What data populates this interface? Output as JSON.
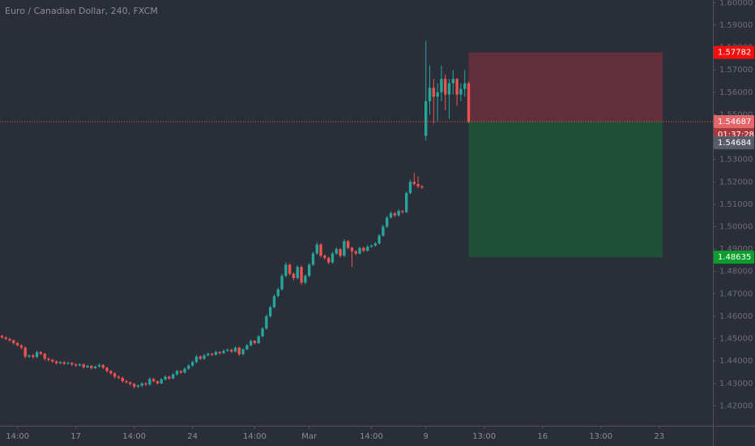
{
  "chart_data": {
    "type": "candlestick",
    "title": "Euro / Canadian Dollar, 240, FXCM",
    "up_color": "#26a69a",
    "down_color": "#ef5350",
    "ylim": [
      1.4111,
      1.6012
    ],
    "yticks": [
      {
        "value": 1.42,
        "label": "1.42000"
      },
      {
        "value": 1.43,
        "label": "1.43000"
      },
      {
        "value": 1.44,
        "label": "1.44000"
      },
      {
        "value": 1.45,
        "label": "1.45000"
      },
      {
        "value": 1.46,
        "label": "1.46000"
      },
      {
        "value": 1.47,
        "label": "1.47000"
      },
      {
        "value": 1.48,
        "label": "1.48000"
      },
      {
        "value": 1.49,
        "label": "1.49000"
      },
      {
        "value": 1.5,
        "label": "1.50000"
      },
      {
        "value": 1.51,
        "label": "1.51000"
      },
      {
        "value": 1.52,
        "label": "1.52000"
      },
      {
        "value": 1.53,
        "label": "1.53000"
      },
      {
        "value": 1.54,
        "label": "1.54000"
      },
      {
        "value": 1.55,
        "label": "1.55000"
      },
      {
        "value": 1.56,
        "label": "1.56000"
      },
      {
        "value": 1.57,
        "label": "1.57000"
      },
      {
        "value": 1.58,
        "label": "1.58000"
      },
      {
        "value": 1.59,
        "label": "1.59000"
      },
      {
        "value": 1.6,
        "label": "1.60000"
      }
    ],
    "xlim": [
      -0.5,
      182.8
    ],
    "xticks": [
      {
        "value": 4,
        "label": "14:00"
      },
      {
        "value": 19,
        "label": "17"
      },
      {
        "value": 34,
        "label": "14:00"
      },
      {
        "value": 49,
        "label": "24"
      },
      {
        "value": 65,
        "label": "14:00"
      },
      {
        "value": 79,
        "label": "Mar"
      },
      {
        "value": 95,
        "label": "14:00"
      },
      {
        "value": 109,
        "label": "9"
      },
      {
        "value": 124,
        "label": "13:00"
      },
      {
        "value": 139,
        "label": "16"
      },
      {
        "value": 154,
        "label": "13:00"
      },
      {
        "value": 169,
        "label": "23"
      }
    ],
    "stop": 1.57782,
    "target": 1.48635,
    "bid": 1.54684,
    "countdown": "01:37:28",
    "candles": [
      [
        1.4512,
        1.4518,
        1.45,
        1.4505
      ],
      [
        1.4505,
        1.451,
        1.4494,
        1.4498
      ],
      [
        1.4498,
        1.4504,
        1.4486,
        1.4492
      ],
      [
        1.4492,
        1.4497,
        1.4474,
        1.448
      ],
      [
        1.448,
        1.4486,
        1.4464,
        1.447
      ],
      [
        1.447,
        1.4475,
        1.4452,
        1.446
      ],
      [
        1.446,
        1.4465,
        1.4412,
        1.442
      ],
      [
        1.442,
        1.443,
        1.4414,
        1.4425
      ],
      [
        1.4425,
        1.4432,
        1.441,
        1.4418
      ],
      [
        1.4418,
        1.4446,
        1.4412,
        1.444
      ],
      [
        1.444,
        1.4445,
        1.4426,
        1.4432
      ],
      [
        1.4432,
        1.4436,
        1.4402,
        1.441
      ],
      [
        1.441,
        1.4416,
        1.4398,
        1.4405
      ],
      [
        1.4405,
        1.441,
        1.4392,
        1.4398
      ],
      [
        1.4398,
        1.4403,
        1.4384,
        1.439
      ],
      [
        1.439,
        1.44,
        1.4385,
        1.4395
      ],
      [
        1.4395,
        1.4399,
        1.4382,
        1.4388
      ],
      [
        1.4388,
        1.4397,
        1.4383,
        1.4392
      ],
      [
        1.4392,
        1.4396,
        1.4378,
        1.4385
      ],
      [
        1.4385,
        1.439,
        1.4374,
        1.438
      ],
      [
        1.438,
        1.4391,
        1.4376,
        1.4385
      ],
      [
        1.4385,
        1.4389,
        1.4366,
        1.4372
      ],
      [
        1.4372,
        1.4384,
        1.4368,
        1.4378
      ],
      [
        1.4378,
        1.4382,
        1.4362,
        1.4368
      ],
      [
        1.4368,
        1.438,
        1.4364,
        1.4375
      ],
      [
        1.4375,
        1.439,
        1.437,
        1.4382
      ],
      [
        1.4382,
        1.4386,
        1.4364,
        1.437
      ],
      [
        1.437,
        1.4374,
        1.4348,
        1.4355
      ],
      [
        1.4355,
        1.436,
        1.4338,
        1.4345
      ],
      [
        1.4345,
        1.435,
        1.4322,
        1.433
      ],
      [
        1.433,
        1.4336,
        1.4318,
        1.4325
      ],
      [
        1.4325,
        1.433,
        1.4302,
        1.431
      ],
      [
        1.431,
        1.4316,
        1.4298,
        1.4305
      ],
      [
        1.4305,
        1.431,
        1.429,
        1.4298
      ],
      [
        1.4298,
        1.4302,
        1.4278,
        1.4285
      ],
      [
        1.4285,
        1.4296,
        1.428,
        1.429
      ],
      [
        1.429,
        1.4306,
        1.4284,
        1.43
      ],
      [
        1.43,
        1.4304,
        1.4288,
        1.4295
      ],
      [
        1.4295,
        1.4328,
        1.429,
        1.432
      ],
      [
        1.432,
        1.4325,
        1.4304,
        1.431
      ],
      [
        1.431,
        1.4314,
        1.4294,
        1.43
      ],
      [
        1.43,
        1.4324,
        1.4296,
        1.4318
      ],
      [
        1.4318,
        1.4336,
        1.4312,
        1.433
      ],
      [
        1.433,
        1.4334,
        1.4316,
        1.4322
      ],
      [
        1.4322,
        1.4346,
        1.4318,
        1.434
      ],
      [
        1.434,
        1.4362,
        1.4334,
        1.4355
      ],
      [
        1.4355,
        1.436,
        1.4342,
        1.4348
      ],
      [
        1.4348,
        1.4372,
        1.4344,
        1.4365
      ],
      [
        1.4365,
        1.4386,
        1.436,
        1.438
      ],
      [
        1.438,
        1.4402,
        1.4374,
        1.4395
      ],
      [
        1.4395,
        1.4428,
        1.439,
        1.442
      ],
      [
        1.442,
        1.4425,
        1.4404,
        1.441
      ],
      [
        1.441,
        1.4432,
        1.4405,
        1.4425
      ],
      [
        1.4425,
        1.4438,
        1.442,
        1.4432
      ],
      [
        1.4432,
        1.4436,
        1.4422,
        1.4428
      ],
      [
        1.4428,
        1.4446,
        1.4424,
        1.444
      ],
      [
        1.444,
        1.4444,
        1.443,
        1.4435
      ],
      [
        1.4435,
        1.4452,
        1.443,
        1.4445
      ],
      [
        1.4445,
        1.4456,
        1.444,
        1.445
      ],
      [
        1.445,
        1.4454,
        1.4436,
        1.4442
      ],
      [
        1.4442,
        1.4466,
        1.4438,
        1.446
      ],
      [
        1.446,
        1.4464,
        1.4422,
        1.443
      ],
      [
        1.443,
        1.4458,
        1.4425,
        1.4452
      ],
      [
        1.4452,
        1.4476,
        1.4448,
        1.447
      ],
      [
        1.447,
        1.4496,
        1.4465,
        1.449
      ],
      [
        1.449,
        1.4494,
        1.4474,
        1.448
      ],
      [
        1.448,
        1.4516,
        1.4476,
        1.451
      ],
      [
        1.451,
        1.4552,
        1.4505,
        1.4545
      ],
      [
        1.4545,
        1.4608,
        1.454,
        1.46
      ],
      [
        1.46,
        1.4648,
        1.4594,
        1.464
      ],
      [
        1.464,
        1.4698,
        1.4635,
        1.469
      ],
      [
        1.469,
        1.4728,
        1.4684,
        1.472
      ],
      [
        1.472,
        1.479,
        1.4714,
        1.478
      ],
      [
        1.478,
        1.484,
        1.4774,
        1.483
      ],
      [
        1.483,
        1.4836,
        1.4782,
        1.479
      ],
      [
        1.479,
        1.4796,
        1.476,
        1.477
      ],
      [
        1.477,
        1.4828,
        1.4764,
        1.482
      ],
      [
        1.482,
        1.4826,
        1.474,
        1.475
      ],
      [
        1.475,
        1.4788,
        1.4744,
        1.478
      ],
      [
        1.478,
        1.4838,
        1.4774,
        1.483
      ],
      [
        1.483,
        1.4888,
        1.4824,
        1.488
      ],
      [
        1.488,
        1.493,
        1.4874,
        1.492
      ],
      [
        1.492,
        1.4926,
        1.4862,
        1.487
      ],
      [
        1.487,
        1.4876,
        1.4852,
        1.486
      ],
      [
        1.486,
        1.4866,
        1.4832,
        1.484
      ],
      [
        1.484,
        1.4888,
        1.4834,
        1.488
      ],
      [
        1.488,
        1.4908,
        1.4874,
        1.49
      ],
      [
        1.49,
        1.4905,
        1.4862,
        1.487
      ],
      [
        1.487,
        1.4944,
        1.4865,
        1.4935
      ],
      [
        1.4935,
        1.494,
        1.4898,
        1.4905
      ],
      [
        1.4905,
        1.491,
        1.482,
        1.489
      ],
      [
        1.489,
        1.4895,
        1.4872,
        1.488
      ],
      [
        1.488,
        1.4912,
        1.4875,
        1.4905
      ],
      [
        1.4905,
        1.491,
        1.4886,
        1.4892
      ],
      [
        1.4892,
        1.4918,
        1.4888,
        1.491
      ],
      [
        1.491,
        1.4922,
        1.4905,
        1.4915
      ],
      [
        1.4915,
        1.4932,
        1.491,
        1.4925
      ],
      [
        1.4925,
        1.4968,
        1.492,
        1.496
      ],
      [
        1.496,
        1.5008,
        1.4955,
        1.5
      ],
      [
        1.5,
        1.5048,
        1.4995,
        1.504
      ],
      [
        1.504,
        1.5068,
        1.5035,
        1.506
      ],
      [
        1.506,
        1.5066,
        1.5042,
        1.505
      ],
      [
        1.505,
        1.5078,
        1.5045,
        1.507
      ],
      [
        1.507,
        1.5075,
        1.5058,
        1.5065
      ],
      [
        1.5065,
        1.5158,
        1.506,
        1.515
      ],
      [
        1.515,
        1.521,
        1.5145,
        1.52
      ],
      [
        1.52,
        1.524,
        1.5184,
        1.519
      ],
      [
        1.519,
        1.5225,
        1.5172,
        1.518
      ],
      [
        1.518,
        1.5186,
        1.5168,
        1.5175
      ],
      [
        1.5405,
        1.583,
        1.5385,
        1.556
      ],
      [
        1.556,
        1.572,
        1.55,
        1.562
      ],
      [
        1.562,
        1.566,
        1.546,
        1.558
      ],
      [
        1.558,
        1.564,
        1.547,
        1.56
      ],
      [
        1.56,
        1.572,
        1.556,
        1.566
      ],
      [
        1.566,
        1.568,
        1.552,
        1.559
      ],
      [
        1.559,
        1.566,
        1.548,
        1.564
      ],
      [
        1.564,
        1.57,
        1.559,
        1.566
      ],
      [
        1.566,
        1.5665,
        1.554,
        1.559
      ],
      [
        1.559,
        1.564,
        1.556,
        1.5615
      ],
      [
        1.5615,
        1.57,
        1.558,
        1.564
      ],
      [
        1.564,
        1.5648,
        1.5462,
        1.54687
      ]
    ]
  }
}
